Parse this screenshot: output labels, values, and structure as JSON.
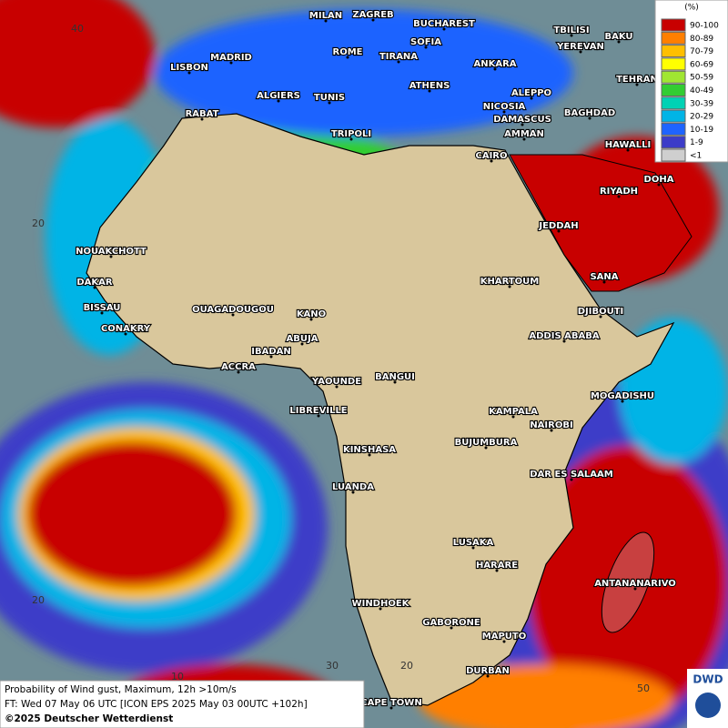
{
  "legend": {
    "title": "(%)",
    "entries": [
      {
        "label": "90-100",
        "color": "#c80000"
      },
      {
        "label": "80-89",
        "color": "#ff7f00"
      },
      {
        "label": "70-79",
        "color": "#ffbf00"
      },
      {
        "label": "60-69",
        "color": "#ffff00"
      },
      {
        "label": "50-59",
        "color": "#a0e632"
      },
      {
        "label": "40-49",
        "color": "#32cd32"
      },
      {
        "label": "30-39",
        "color": "#00d2b4"
      },
      {
        "label": "20-29",
        "color": "#00b4e6"
      },
      {
        "label": "10-19",
        "color": "#1e64ff"
      },
      {
        "label": "1-9",
        "color": "#3c3cc8"
      },
      {
        "label": "<1",
        "color": "#cfcfcf"
      }
    ]
  },
  "cities": [
    "MILAN",
    "ZAGREB",
    "BUCHAREST",
    "TBILISI",
    "BAKU",
    "MADRID",
    "ROME",
    "SOFIA",
    "YEREVAN",
    "LISBON",
    "TIRANA",
    "ANKARA",
    "TEHRAN",
    "ALGIERS",
    "TUNIS",
    "ATHENS",
    "ALEPPO",
    "RABAT",
    "NICOSIA",
    "BAGHDAD",
    "TRIPOLI",
    "DAMASCUS",
    "AMMAN",
    "HAWALLI",
    "CAIRO",
    "DOHA",
    "RIYADH",
    "NOUAKCHOTT",
    "JEDDAH",
    "DAKAR",
    "SANA",
    "KHARTOUM",
    "BISSAU",
    "OUAGADOUGOU",
    "DJIBOUTI",
    "CONAKRY",
    "KANO",
    "ABUJA",
    "ADDIS ABABA",
    "IBADAN",
    "ACCRA",
    "YAOUNDE",
    "BANGUI",
    "MOGADISHU",
    "LIBREVILLE",
    "KAMPALA",
    "NAIROBI",
    "KINSHASA",
    "BUJUMBURA",
    "DAR ES SALAAM",
    "LUANDA",
    "LUSAKA",
    "HARARE",
    "ANTANANARIVO",
    "WINDHOEK",
    "GABORONE",
    "MAPUTO",
    "DURBAN",
    "CAPE TOWN"
  ],
  "grid_labels": [
    "40",
    "20",
    "20",
    "10",
    "30",
    "20",
    "50"
  ],
  "footer": {
    "line1": "Probability of Wind gust, Maximum, 12h >10m/s",
    "line2": "FT: Wed 07 May 06 UTC [ICON EPS 2025 May 03 00UTC +102h]",
    "copyright": "©2025 Deutscher Wetterdienst"
  },
  "logo": "DWD"
}
